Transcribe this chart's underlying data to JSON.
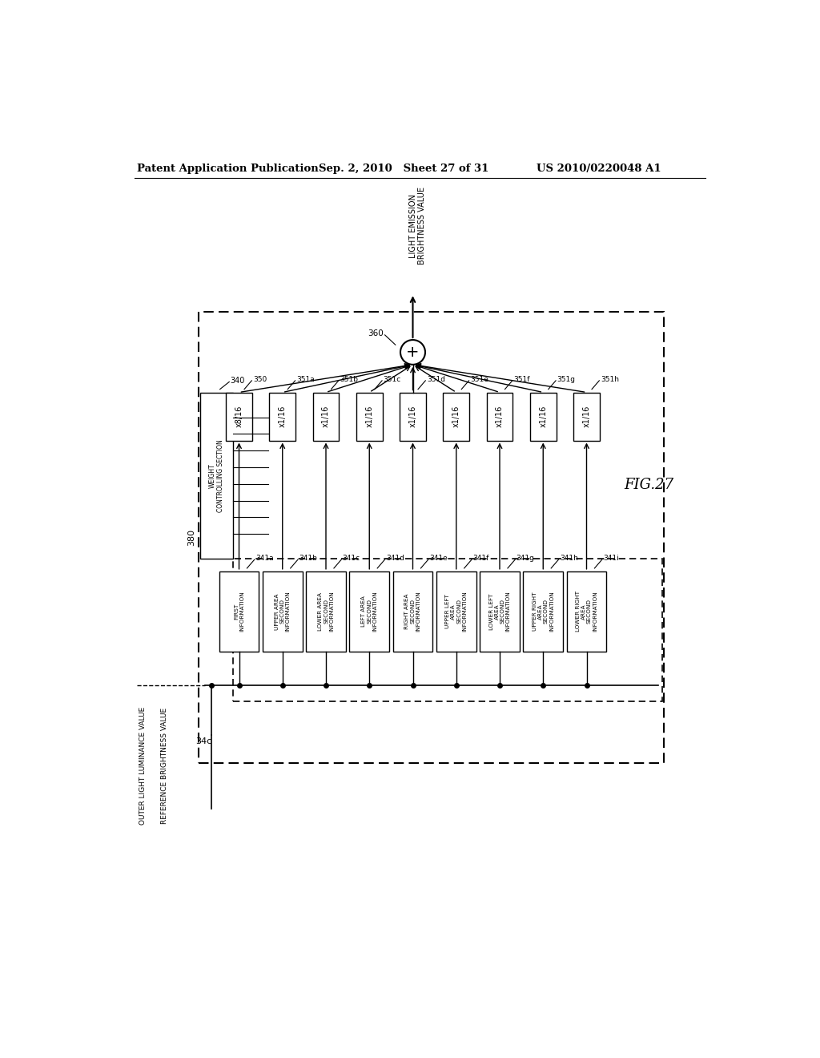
{
  "title_left": "Patent Application Publication",
  "title_mid": "Sep. 2, 2010   Sheet 27 of 31",
  "title_right": "US 2010/0220048 A1",
  "fig_label": "FIG.27",
  "bg_color": "#ffffff",
  "multiplier_labels": [
    "x8/16",
    "x1/16",
    "x1/16",
    "x1/16",
    "x1/16",
    "x1/16",
    "x1/16",
    "x1/16",
    "x1/16"
  ],
  "multiplier_refs": [
    "350",
    "351a",
    "351b",
    "351c",
    "351d",
    "351e",
    "351f",
    "351g",
    "351h"
  ],
  "info_labels": [
    "FIRST\nINFORMATION",
    "UPPER AREA\nSECOND\nINFORMATION",
    "LOWER AREA\nSECOND\nINFORMATION",
    "LEFT AREA\nSECOND\nINFORMATION",
    "RIGHT AREA\nSECOND\nINFORMATION",
    "UPPER LEFT\nAREA\nSECOND\nINFORMATION",
    "LOWER LEFT\nAREA\nSECOND\nINFORMATION",
    "UPPER RIGHT\nAREA\nSECOND\nINFORMATION",
    "LOWER RIGHT\nAREA\nSECOND\nINFORMATION"
  ],
  "info_refs": [
    "341a",
    "341b",
    "341c",
    "341d",
    "341e",
    "341f",
    "341g",
    "341h",
    "341i"
  ],
  "weight_label": "WEIGHT\nCONTROLLING SECTION",
  "weight_ref": "340",
  "outer_label1": "OUTER LIGHT LUMINANCE VALUE",
  "outer_label2": "REFERENCE BRIGHTNESS VALUE",
  "top_label": "LIGHT EMISSION\nBRIGHTNESS VALUE",
  "sum_ref": "360",
  "input_ref": "34c",
  "main_ref": "380"
}
